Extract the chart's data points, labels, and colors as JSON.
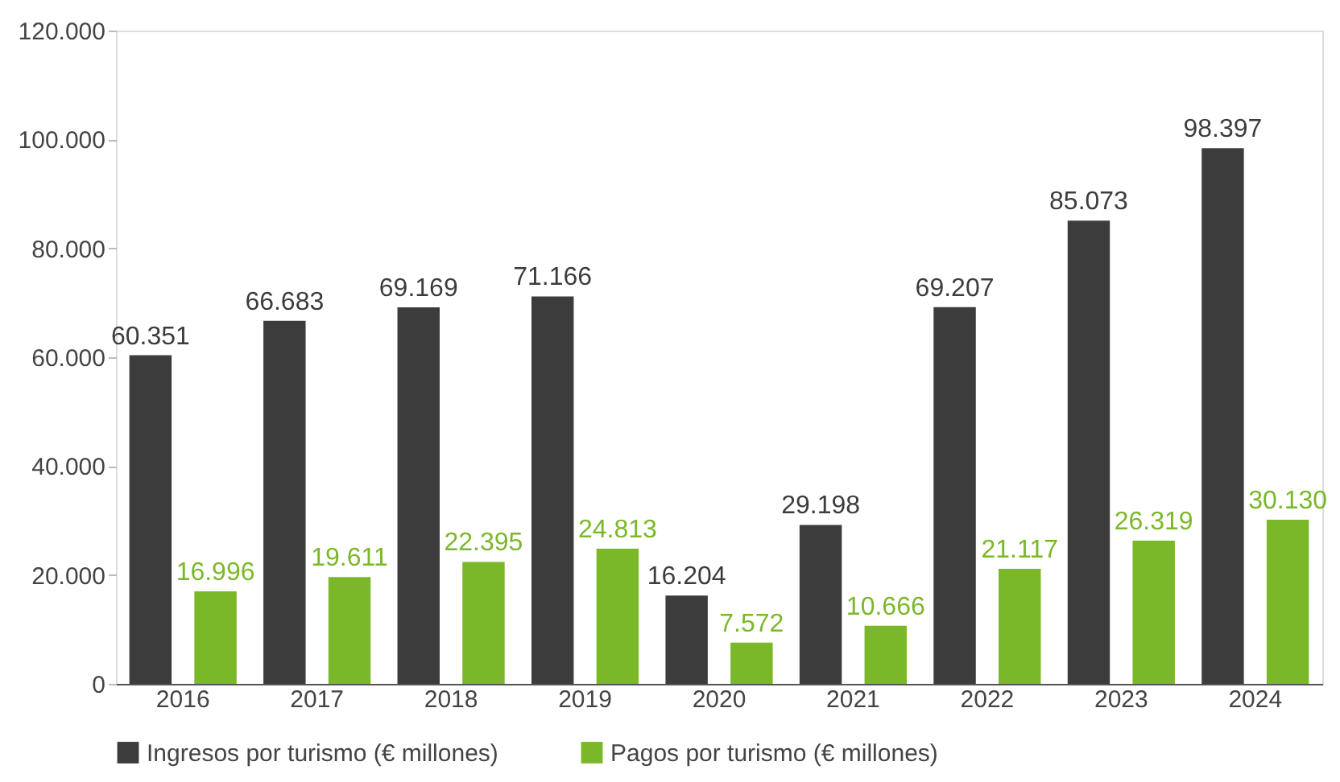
{
  "chart_data": {
    "type": "bar",
    "categories": [
      "2016",
      "2017",
      "2018",
      "2019",
      "2020",
      "2021",
      "2022",
      "2023",
      "2024"
    ],
    "series": [
      {
        "name": "Ingresos por turismo (€ millones)",
        "color": "#3c3c3c",
        "values": [
          60351,
          66683,
          69169,
          71166,
          16204,
          29198,
          69207,
          85073,
          98397
        ],
        "value_labels": [
          "60.351",
          "66.683",
          "69.169",
          "71.166",
          "16.204",
          "29.198",
          "69.207",
          "85.073",
          "98.397"
        ]
      },
      {
        "name": "Pagos por turismo (€ millones)",
        "color": "#7bb829",
        "values": [
          16996,
          19611,
          22395,
          24813,
          7572,
          10666,
          21117,
          26319,
          30130
        ],
        "value_labels": [
          "16.996",
          "19.611",
          "22.395",
          "24.813",
          "7.572",
          "10.666",
          "21.117",
          "26.319",
          "30.130"
        ]
      }
    ],
    "ylim": [
      0,
      120000
    ],
    "yticks": [
      0,
      {
        "value": 20000,
        "label": "20.000"
      },
      {
        "value": 40000,
        "label": "40.000"
      },
      {
        "value": 60000,
        "label": "60.000"
      },
      {
        "value": 80000,
        "label": "80.000"
      },
      {
        "value": 100000,
        "label": "100.000"
      },
      {
        "value": 120000,
        "label": "120.000"
      }
    ],
    "grid": false,
    "legend": "bottom"
  }
}
